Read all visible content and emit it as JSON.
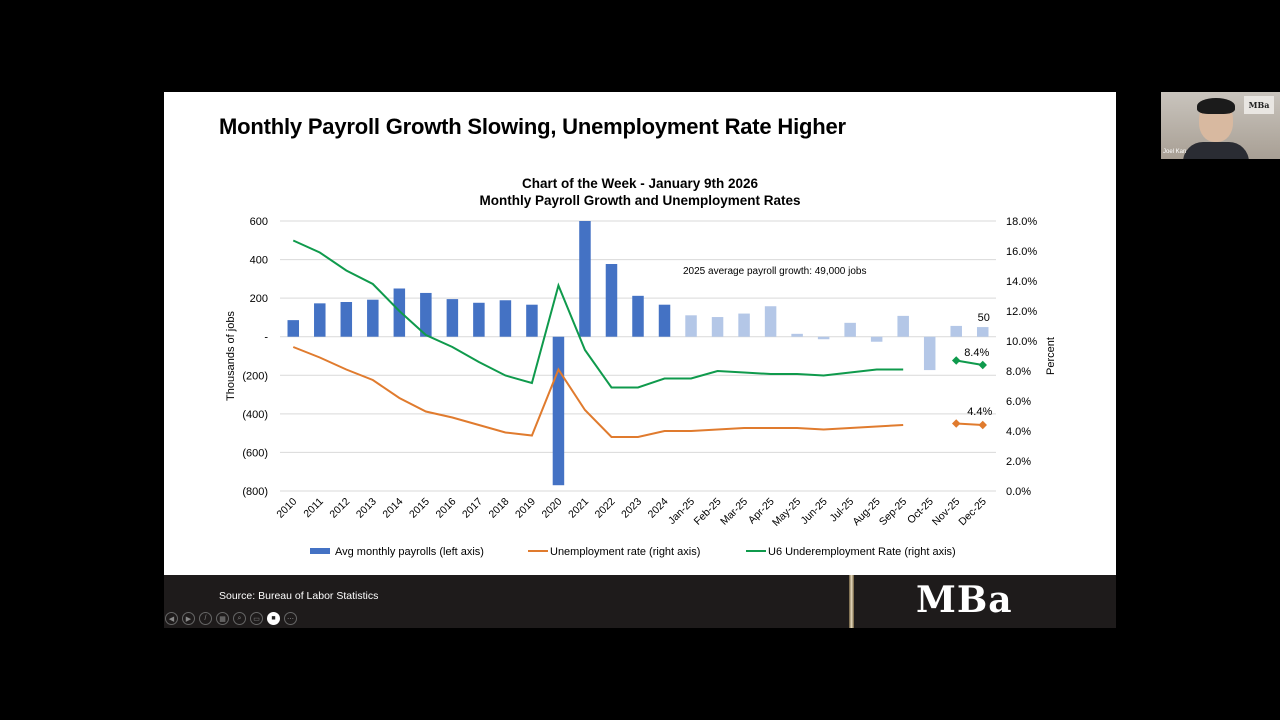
{
  "slide": {
    "title": "Monthly Payroll Growth Slowing, Unemployment Rate Higher",
    "chart_title_line1": "Chart of the Week - January 9th 2026",
    "chart_title_line2": "Monthly Payroll Growth and Unemployment Rates",
    "footer_source": "Source: Bureau of Labor Statistics",
    "footer_logo": "MBa"
  },
  "video_tile": {
    "participant_name": "Joel Kan",
    "background_logo": "MBa"
  },
  "controls": [
    {
      "name": "previous-slide-button",
      "glyph": "◀"
    },
    {
      "name": "next-slide-button",
      "glyph": "▶"
    },
    {
      "name": "pen-tool-button",
      "glyph": "/"
    },
    {
      "name": "see-all-slides-button",
      "glyph": "▦"
    },
    {
      "name": "zoom-button",
      "glyph": "⌕"
    },
    {
      "name": "subtitles-button",
      "glyph": "▭"
    },
    {
      "name": "camera-button",
      "glyph": "■"
    },
    {
      "name": "more-options-button",
      "glyph": "⋯"
    }
  ],
  "colors": {
    "bar_dark": "#4472c4",
    "bar_light": "#b4c7e7",
    "unemployment": "#e07b2e",
    "u6": "#0f9a4c",
    "grid": "#d9d9d9",
    "footer_bg": "#1e1b1b"
  },
  "chart_data": {
    "type": "bar+line",
    "title": "Chart of the Week - January 9th 2026 / Monthly Payroll Growth and Unemployment Rates",
    "categories": [
      "2010",
      "2011",
      "2012",
      "2013",
      "2014",
      "2015",
      "2016",
      "2017",
      "2018",
      "2019",
      "2020",
      "2021",
      "2022",
      "2023",
      "2024",
      "Jan-25",
      "Feb-25",
      "Mar-25",
      "Apr-25",
      "May-25",
      "Jun-25",
      "Jul-25",
      "Aug-25",
      "Sep-25",
      "Oct-25",
      "Nov-25",
      "Dec-25"
    ],
    "left_axis": {
      "label": "Thousands of jobs",
      "ylim": [
        -800,
        600
      ],
      "ticks": [
        "600",
        "400",
        "200",
        "-",
        "(200)",
        "(400)",
        "(600)",
        "(800)"
      ],
      "tick_values": [
        600,
        400,
        200,
        0,
        -200,
        -400,
        -600,
        -800
      ]
    },
    "right_axis": {
      "label": "Percent",
      "ylim": [
        0,
        18
      ],
      "ticks": [
        "18.0%",
        "16.0%",
        "14.0%",
        "12.0%",
        "10.0%",
        "8.0%",
        "6.0%",
        "4.0%",
        "2.0%",
        "0.0%"
      ],
      "tick_values": [
        18,
        16,
        14,
        12,
        10,
        8,
        6,
        4,
        2,
        0
      ]
    },
    "series": [
      {
        "name": "Avg monthly payrolls (left axis)",
        "type": "bar",
        "axis": "left",
        "values": [
          86,
          173,
          180,
          192,
          250,
          227,
          195,
          176,
          189,
          166,
          -770,
          600,
          377,
          212,
          166,
          111,
          102,
          120,
          158,
          15,
          -13,
          72,
          -26,
          108,
          -173,
          56,
          50
        ]
      },
      {
        "name": "Unemployment rate (right axis)",
        "type": "line",
        "axis": "right",
        "values": [
          9.6,
          8.9,
          8.1,
          7.4,
          6.2,
          5.3,
          4.9,
          4.4,
          3.9,
          3.7,
          8.1,
          5.4,
          3.6,
          3.6,
          4.0,
          4.0,
          4.1,
          4.2,
          4.2,
          4.2,
          4.1,
          4.2,
          4.3,
          4.4,
          null,
          4.5,
          4.4
        ]
      },
      {
        "name": "U6 Underemployment Rate (right axis)",
        "type": "line",
        "axis": "right",
        "values": [
          16.7,
          15.9,
          14.7,
          13.8,
          12.0,
          10.4,
          9.6,
          8.6,
          7.7,
          7.2,
          13.7,
          9.4,
          6.9,
          6.9,
          7.5,
          7.5,
          8.0,
          7.9,
          7.8,
          7.8,
          7.7,
          7.9,
          8.1,
          8.1,
          null,
          8.7,
          8.4
        ]
      }
    ],
    "annotations": [
      {
        "text": "2025 average payroll growth: 49,000 jobs"
      },
      {
        "text": "50",
        "target": "Dec-25 payrolls"
      },
      {
        "text": "8.4%",
        "target": "Dec-25 U6"
      },
      {
        "text": "4.4%",
        "target": "Dec-25 unemployment"
      }
    ],
    "legend": [
      "Avg monthly payrolls (left axis)",
      "Unemployment rate (right axis)",
      "U6 Underemployment Rate (right axis)"
    ],
    "legend_position": "bottom",
    "grid": true
  }
}
